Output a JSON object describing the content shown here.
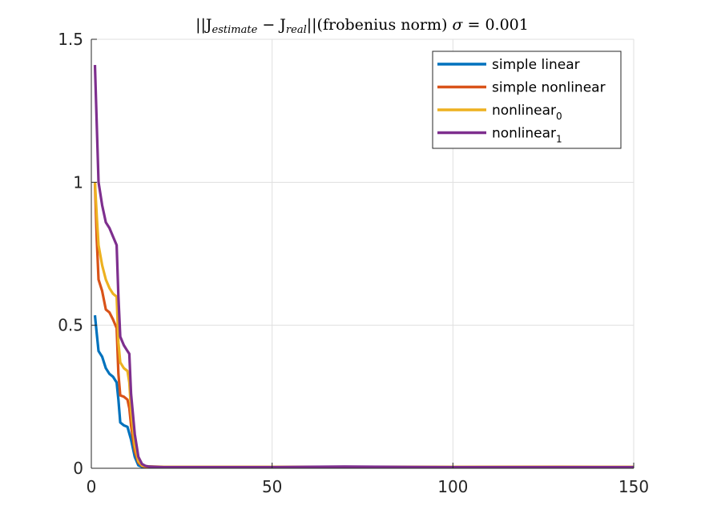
{
  "chart_data": {
    "type": "line",
    "title": "||J_estimate − J_real||(frobenius norm) σ = 0.001",
    "title_parts": {
      "open": "||J",
      "sub1": "estimate",
      "minus": " − J",
      "sub2": "real",
      "close": "||(frobenius norm) ",
      "sigma": "σ",
      "rest": " = 0.001"
    },
    "xlabel": "",
    "ylabel": "",
    "xlim": [
      0,
      150
    ],
    "ylim": [
      0,
      1.5
    ],
    "xticks": [
      0,
      50,
      100,
      150
    ],
    "xtick_labels": [
      "0",
      "50",
      "100",
      "150"
    ],
    "yticks": [
      0,
      0.5,
      1,
      1.5
    ],
    "ytick_labels": [
      "0",
      "0.5",
      "1",
      "1.5"
    ],
    "grid": true,
    "legend_position": "top-right",
    "series": [
      {
        "name": "simple linear",
        "legend_base": "simple linear",
        "legend_sub": "",
        "color": "#0072BD",
        "x": [
          1,
          1.5,
          2,
          3,
          4,
          5,
          6,
          7,
          7.5,
          8,
          8.5,
          9,
          10,
          11,
          12,
          13,
          14,
          15,
          20,
          50,
          100,
          150
        ],
        "y": [
          0.535,
          0.47,
          0.41,
          0.39,
          0.35,
          0.33,
          0.32,
          0.3,
          0.24,
          0.16,
          0.155,
          0.15,
          0.145,
          0.1,
          0.04,
          0.01,
          0.005,
          0.004,
          0.003,
          0.003,
          0.003,
          0.003
        ]
      },
      {
        "name": "simple nonlinear",
        "legend_base": "simple nonlinear",
        "legend_sub": "",
        "color": "#D95319",
        "x": [
          1,
          1.5,
          2,
          3,
          4,
          5,
          6,
          7,
          7.5,
          8,
          9,
          10,
          10.5,
          11,
          12,
          13,
          14,
          15,
          20,
          50,
          100,
          130,
          150
        ],
        "y": [
          0.995,
          0.8,
          0.66,
          0.62,
          0.555,
          0.545,
          0.52,
          0.49,
          0.33,
          0.255,
          0.25,
          0.24,
          0.21,
          0.15,
          0.06,
          0.02,
          0.008,
          0.005,
          0.004,
          0.004,
          0.004,
          0.005,
          0.003
        ]
      },
      {
        "name": "nonlinear_0",
        "legend_base": "nonlinear",
        "legend_sub": "0",
        "color": "#EDB120",
        "x": [
          1,
          1.5,
          2,
          3,
          4,
          5,
          6,
          7,
          7.5,
          8,
          9,
          10,
          10.5,
          11,
          12,
          13,
          14,
          15,
          20,
          50,
          100,
          150
        ],
        "y": [
          1.0,
          0.88,
          0.78,
          0.71,
          0.66,
          0.63,
          0.61,
          0.6,
          0.44,
          0.37,
          0.35,
          0.34,
          0.3,
          0.2,
          0.08,
          0.025,
          0.01,
          0.007,
          0.005,
          0.005,
          0.005,
          0.005
        ]
      },
      {
        "name": "nonlinear_1",
        "legend_base": "nonlinear",
        "legend_sub": "1",
        "color": "#7E2F8E",
        "x": [
          1,
          1.5,
          2,
          3,
          4,
          5,
          6,
          7,
          7.5,
          8,
          9,
          10,
          10.5,
          11,
          12,
          13,
          14,
          15,
          16,
          20,
          50,
          70,
          100,
          150
        ],
        "y": [
          1.41,
          1.2,
          1.0,
          0.92,
          0.86,
          0.84,
          0.81,
          0.78,
          0.6,
          0.46,
          0.43,
          0.41,
          0.4,
          0.26,
          0.12,
          0.04,
          0.015,
          0.008,
          0.006,
          0.004,
          0.004,
          0.006,
          0.004,
          0.004
        ]
      }
    ]
  }
}
